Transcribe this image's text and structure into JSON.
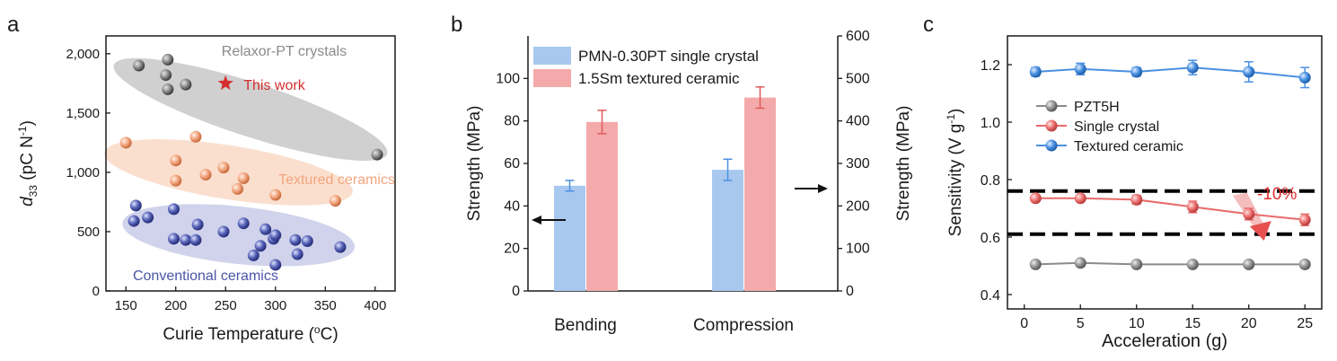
{
  "panels": {
    "a": "a",
    "b": "b",
    "c": "c"
  },
  "chart_data": [
    {
      "panel": "a",
      "type": "scatter",
      "xlabel": "Curie Temperature (",
      "xlabel_sup": "o",
      "xlabel_end": "C)",
      "ylabel_main": "d",
      "ylabel_sub": "33",
      "ylabel_rest": " (pC N",
      "ylabel_sup": "-1",
      "ylabel_end": ")",
      "xlim": [
        130,
        420
      ],
      "ylim": [
        0,
        2150
      ],
      "xticks": [
        150,
        200,
        250,
        300,
        350,
        400
      ],
      "yticks": [
        0,
        500,
        1000,
        1500,
        2000
      ],
      "ytick_labels": [
        "0",
        "500",
        "1,000",
        "1,500",
        "2,000"
      ],
      "groups": [
        {
          "label": "Relaxor-PT crystals",
          "color": "#8a8a8a",
          "region_color": "#c8c8c8",
          "points": [
            [
              163,
              1900
            ],
            [
              192,
              1950
            ],
            [
              190,
              1820
            ],
            [
              192,
              1700
            ],
            [
              210,
              1740
            ],
            [
              402,
              1150
            ]
          ]
        },
        {
          "label": "Textured ceramics",
          "color": "#f2a57e",
          "region_color": "#fad9c6",
          "points": [
            [
              150,
              1250
            ],
            [
              220,
              1300
            ],
            [
              200,
              1100
            ],
            [
              200,
              930
            ],
            [
              230,
              980
            ],
            [
              248,
              1040
            ],
            [
              268,
              950
            ],
            [
              262,
              860
            ],
            [
              300,
              810
            ],
            [
              360,
              760
            ]
          ]
        },
        {
          "label": "Conventional ceramics",
          "color": "#4a55a8",
          "region_color": "#c8cbe8",
          "points": [
            [
              160,
              720
            ],
            [
              158,
              590
            ],
            [
              172,
              620
            ],
            [
              198,
              690
            ],
            [
              198,
              440
            ],
            [
              210,
              430
            ],
            [
              220,
              430
            ],
            [
              222,
              560
            ],
            [
              248,
              500
            ],
            [
              268,
              570
            ],
            [
              290,
              520
            ],
            [
              285,
              380
            ],
            [
              278,
              300
            ],
            [
              298,
              440
            ],
            [
              300,
              470
            ],
            [
              300,
              220
            ],
            [
              320,
              430
            ],
            [
              332,
              420
            ],
            [
              322,
              310
            ],
            [
              365,
              370
            ]
          ]
        }
      ],
      "highlight": {
        "label": "This work",
        "x": 250,
        "y": 1750,
        "color": "#d32f2f"
      }
    },
    {
      "panel": "b",
      "type": "bar",
      "categories": [
        "Bending",
        "Compression"
      ],
      "ylabel_left": "Strength (MPa)",
      "ylabel_right": "Strength (MPa)",
      "ylim_left": [
        0,
        120
      ],
      "ylim_right": [
        0,
        600
      ],
      "yticks_left": [
        0,
        20,
        40,
        60,
        80,
        100
      ],
      "yticks_right": [
        0,
        100,
        200,
        300,
        400,
        500,
        600
      ],
      "series": [
        {
          "name": "PMN-0.30PT single crystal",
          "color": "#a9c8ef",
          "err_color": "#4a90e2",
          "values": [
            49.5,
            57
          ],
          "errors": [
            2.5,
            5
          ]
        },
        {
          "name": "1.5Sm textured ceramic",
          "color": "#f4aaaa",
          "err_color": "#e05a5a",
          "values": [
            79.5,
            91
          ],
          "errors": [
            5.5,
            5
          ]
        }
      ]
    },
    {
      "panel": "c",
      "type": "line",
      "xlabel": "Acceleration (g)",
      "ylabel": "Sensitivity (V g",
      "ylabel_sup": "-1",
      "ylabel_end": ")",
      "x": [
        1,
        5,
        10,
        15,
        20,
        25
      ],
      "xlim": [
        -1.5,
        26.5
      ],
      "ylim": [
        0.35,
        1.3
      ],
      "xticks": [
        0,
        5,
        10,
        15,
        20,
        25
      ],
      "yticks": [
        0.4,
        0.6,
        0.8,
        1.0,
        1.2
      ],
      "ytick_labels": [
        "0.4",
        "0.6",
        "0.8",
        "1.0",
        "1.2"
      ],
      "series": [
        {
          "name": "Textured ceramic",
          "color": "#4a90e2",
          "values": [
            1.175,
            1.185,
            1.175,
            1.19,
            1.175,
            1.155
          ],
          "errors": [
            0.015,
            0.02,
            0.015,
            0.025,
            0.035,
            0.035
          ]
        },
        {
          "name": "Single crystal",
          "color": "#e86a6a",
          "values": [
            0.735,
            0.735,
            0.73,
            0.705,
            0.68,
            0.66
          ],
          "errors": [
            0.01,
            0.01,
            0.015,
            0.02,
            0.02,
            0.02
          ]
        },
        {
          "name": "PZT5H",
          "color": "#8a8a8a",
          "values": [
            0.505,
            0.51,
            0.505,
            0.505,
            0.505,
            0.505
          ],
          "errors": [
            0.008,
            0.008,
            0.008,
            0.008,
            0.012,
            0.012
          ]
        }
      ],
      "legend_order": [
        "PZT5H",
        "Single crystal",
        "Textured ceramic"
      ],
      "hlines": [
        0.76,
        0.61
      ],
      "annotation": "-10%"
    }
  ]
}
